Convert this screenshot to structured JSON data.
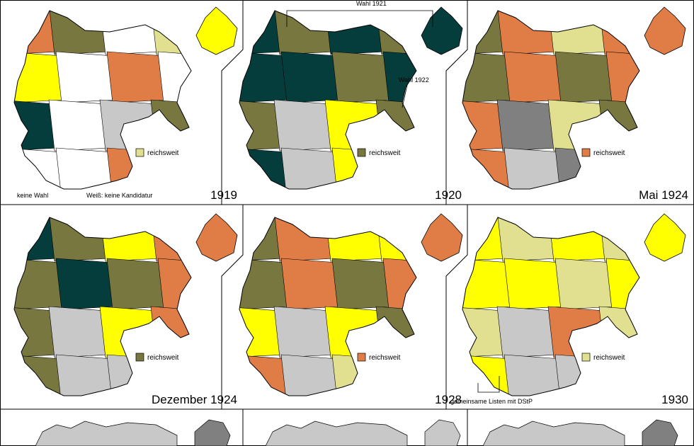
{
  "colors": {
    "olive": "#77773f",
    "orange": "#e07d47",
    "yellow": "#ffff00",
    "lightKhaki": "#e0e090",
    "darkTeal": "#053d3d",
    "lightGray": "#c8c8c8",
    "darkGray": "#808080",
    "white": "#ffffff",
    "border": "#000000"
  },
  "panels": [
    {
      "title": "1919",
      "legend_label": "reichsweit",
      "legend_color": "lightKhaki",
      "note_left": "keine Wahl",
      "note_right": "Weiß: keine Kandidatur"
    },
    {
      "title": "1920",
      "legend_label": "reichsweit",
      "legend_color": "olive",
      "annotation_top": "Wahl 1921",
      "annotation_side": "Wahl 1922"
    },
    {
      "title": "Mai 1924",
      "legend_label": "reichsweit",
      "legend_color": "orange"
    },
    {
      "title": "Dezember 1924",
      "legend_label": "reichsweit",
      "legend_color": "olive"
    },
    {
      "title": "1928",
      "legend_label": "reichsweit",
      "legend_color": "orange"
    },
    {
      "title": "1930",
      "legend_label": "reichsweit",
      "legend_color": "lightKhaki",
      "note_bottom": "gemeinsame Listen mit DStP"
    }
  ]
}
